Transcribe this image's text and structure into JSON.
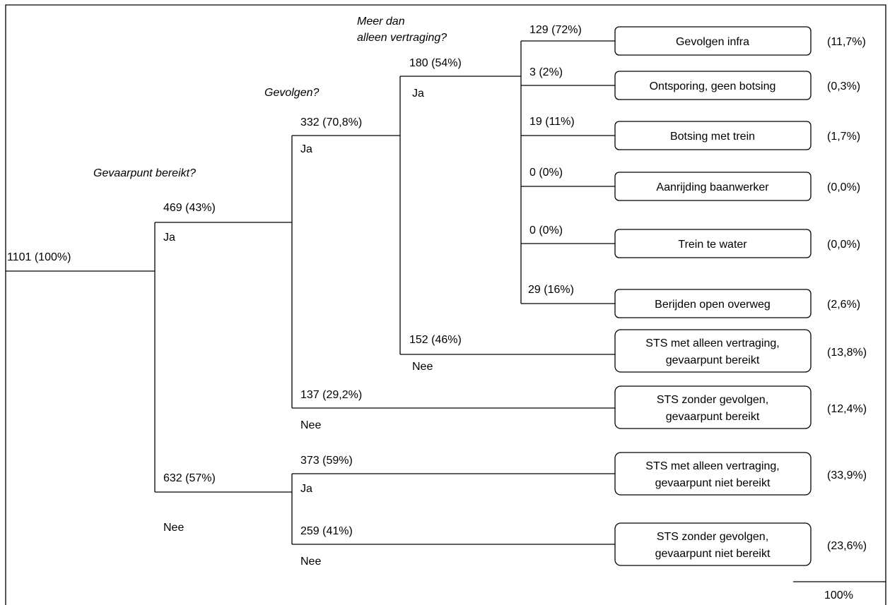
{
  "questions": {
    "q1": "Gevaarpunt bereikt?",
    "q2": "Gevolgen?",
    "q3_line1": "Meer dan",
    "q3_line2": "alleen vertraging?"
  },
  "root": {
    "label": "1101 (100%)"
  },
  "level1": {
    "yes": {
      "count": "469 (43%)",
      "answer": "Ja"
    },
    "no": {
      "count": "632 (57%)",
      "answer": "Nee"
    }
  },
  "level2": {
    "yes": {
      "count": "332 (70,8%)",
      "answer": "Ja"
    },
    "no": {
      "count": "137 (29,2%)",
      "answer": "Nee"
    },
    "nr_yes": {
      "count": "373 (59%)",
      "answer": "Ja"
    },
    "nr_no": {
      "count": "259 (41%)",
      "answer": "Nee"
    }
  },
  "level3": {
    "yes": {
      "count": "180 (54%)",
      "answer": "Ja"
    },
    "no": {
      "count": "152 (46%)",
      "answer": "Nee"
    }
  },
  "consequences": [
    {
      "count": "129 (72%)",
      "label": "Gevolgen infra",
      "pct": "(11,7%)"
    },
    {
      "count": "3 (2%)",
      "label": "Ontsporing, geen botsing",
      "pct": "(0,3%)"
    },
    {
      "count": "19 (11%)",
      "label": "Botsing met trein",
      "pct": "(1,7%)"
    },
    {
      "count": "0 (0%)",
      "label": "Aanrijding baanwerker",
      "pct": "(0,0%)"
    },
    {
      "count": "0 (0%)",
      "label": "Trein te water",
      "pct": "(0,0%)"
    },
    {
      "count": "29 (16%)",
      "label": "Berijden open overweg",
      "pct": "(2,6%)"
    }
  ],
  "outcomes": [
    {
      "line1": "STS met alleen vertraging,",
      "line2": "gevaarpunt bereikt",
      "pct": "(13,8%)"
    },
    {
      "line1": "STS zonder gevolgen,",
      "line2": "gevaarpunt bereikt",
      "pct": "(12,4%)"
    },
    {
      "line1": "STS met alleen vertraging,",
      "line2": "gevaarpunt niet bereikt",
      "pct": "(33,9%)"
    },
    {
      "line1": "STS zonder gevolgen,",
      "line2": "gevaarpunt niet bereikt",
      "pct": "(23,6%)"
    }
  ],
  "total": "100%"
}
